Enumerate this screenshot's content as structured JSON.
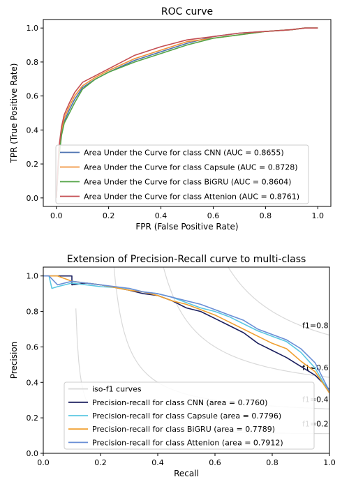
{
  "chart_data": [
    {
      "type": "line",
      "title": "ROC curve",
      "xlabel": "FPR (False Positive Rate)",
      "ylabel": "TPR (True Positive Rate)",
      "xlim": [
        -0.05,
        1.05
      ],
      "ylim": [
        -0.05,
        1.05
      ],
      "xticks": [
        0.0,
        0.2,
        0.4,
        0.6,
        0.8,
        1.0
      ],
      "yticks": [
        0.0,
        0.2,
        0.4,
        0.6,
        0.8,
        1.0
      ],
      "xtick_labels": [
        "0.0",
        "0.2",
        "0.4",
        "0.6",
        "0.8",
        "1.0"
      ],
      "ytick_labels": [
        "0.0",
        "0.2",
        "0.4",
        "0.6",
        "0.8",
        "1.0"
      ],
      "grid": false,
      "legend_position": "lower-right",
      "series": [
        {
          "name": "Area Under the Curve for class CNN (AUC = 0.8655)",
          "color": "#4c72b0",
          "x": [
            0.0,
            0.01,
            0.02,
            0.03,
            0.05,
            0.07,
            0.1,
            0.15,
            0.2,
            0.3,
            0.4,
            0.5,
            0.6,
            0.7,
            0.8,
            0.9,
            0.95,
            1.0
          ],
          "y": [
            0.0,
            0.25,
            0.38,
            0.45,
            0.52,
            0.58,
            0.65,
            0.7,
            0.74,
            0.81,
            0.86,
            0.91,
            0.95,
            0.97,
            0.98,
            0.99,
            1.0,
            1.0
          ]
        },
        {
          "name": "Area Under the Curve for class Capsule (AUC = 0.8728)",
          "color": "#f0923a",
          "x": [
            0.0,
            0.01,
            0.02,
            0.03,
            0.05,
            0.07,
            0.1,
            0.15,
            0.2,
            0.3,
            0.4,
            0.5,
            0.6,
            0.7,
            0.8,
            0.9,
            0.95,
            1.0
          ],
          "y": [
            0.0,
            0.28,
            0.4,
            0.47,
            0.54,
            0.6,
            0.66,
            0.71,
            0.75,
            0.82,
            0.87,
            0.92,
            0.94,
            0.96,
            0.98,
            0.99,
            1.0,
            1.0
          ]
        },
        {
          "name": "Area Under the Curve for class BiGRU (AUC = 0.8604)",
          "color": "#55a448",
          "x": [
            0.0,
            0.01,
            0.02,
            0.03,
            0.05,
            0.07,
            0.1,
            0.15,
            0.2,
            0.3,
            0.4,
            0.5,
            0.6,
            0.7,
            0.8,
            0.9,
            0.95,
            1.0
          ],
          "y": [
            0.0,
            0.24,
            0.37,
            0.44,
            0.5,
            0.56,
            0.64,
            0.7,
            0.74,
            0.8,
            0.85,
            0.9,
            0.94,
            0.96,
            0.98,
            0.99,
            1.0,
            1.0
          ]
        },
        {
          "name": "Area Under the Curve for class Attenion (AUC = 0.8761)",
          "color": "#c44e52",
          "x": [
            0.0,
            0.01,
            0.02,
            0.03,
            0.05,
            0.07,
            0.1,
            0.15,
            0.2,
            0.3,
            0.4,
            0.5,
            0.6,
            0.7,
            0.8,
            0.9,
            0.95,
            1.0
          ],
          "y": [
            0.0,
            0.3,
            0.42,
            0.49,
            0.56,
            0.62,
            0.68,
            0.72,
            0.76,
            0.84,
            0.89,
            0.93,
            0.95,
            0.97,
            0.98,
            0.99,
            1.0,
            1.0
          ]
        }
      ]
    },
    {
      "type": "line",
      "title": "Extension of Precision-Recall curve to multi-class",
      "xlabel": "Recall",
      "ylabel": "Precision",
      "xlim": [
        0.0,
        1.0
      ],
      "ylim": [
        0.0,
        1.05
      ],
      "xticks": [
        0.0,
        0.2,
        0.4,
        0.6,
        0.8,
        1.0
      ],
      "yticks": [
        0.0,
        0.2,
        0.4,
        0.6,
        0.8,
        1.0
      ],
      "xtick_labels": [
        "0.0",
        "0.2",
        "0.4",
        "0.6",
        "0.8",
        "1.0"
      ],
      "ytick_labels": [
        "0.0",
        "0.2",
        "0.4",
        "0.6",
        "0.8",
        "1.0"
      ],
      "grid": false,
      "legend_position": "lower-left",
      "iso_f1": {
        "label": "iso-f1 curves",
        "color": "#d9d9d9",
        "values": [
          0.2,
          0.4,
          0.6,
          0.8
        ],
        "labels": [
          "f1=0.2",
          "f1=0.4",
          "f1=0.6",
          "f1=0.8"
        ]
      },
      "series": [
        {
          "name": "Precision-recall for class CNN (area = 0.7760)",
          "color": "#1b1f5e",
          "x": [
            0.0,
            0.1,
            0.1,
            0.15,
            0.2,
            0.3,
            0.35,
            0.4,
            0.45,
            0.5,
            0.55,
            0.6,
            0.65,
            0.7,
            0.75,
            0.8,
            0.85,
            0.9,
            0.95,
            1.0
          ],
          "y": [
            1.0,
            1.0,
            0.95,
            0.96,
            0.95,
            0.92,
            0.9,
            0.89,
            0.86,
            0.82,
            0.8,
            0.76,
            0.72,
            0.68,
            0.62,
            0.58,
            0.54,
            0.49,
            0.44,
            0.36
          ]
        },
        {
          "name": "Precision-recall for class Capsule (area = 0.7796)",
          "color": "#5bc8e3",
          "x": [
            0.0,
            0.02,
            0.03,
            0.05,
            0.1,
            0.15,
            0.2,
            0.3,
            0.35,
            0.4,
            0.45,
            0.5,
            0.55,
            0.6,
            0.65,
            0.7,
            0.75,
            0.8,
            0.85,
            0.9,
            0.95,
            1.0
          ],
          "y": [
            1.0,
            1.0,
            0.93,
            0.94,
            0.96,
            0.95,
            0.94,
            0.93,
            0.91,
            0.9,
            0.88,
            0.85,
            0.82,
            0.8,
            0.77,
            0.73,
            0.69,
            0.66,
            0.63,
            0.57,
            0.48,
            0.34
          ]
        },
        {
          "name": "Precision-recall for class BiGRU (area = 0.7789)",
          "color": "#f0a030",
          "x": [
            0.0,
            0.05,
            0.1,
            0.15,
            0.2,
            0.3,
            0.35,
            0.4,
            0.45,
            0.5,
            0.55,
            0.6,
            0.65,
            0.7,
            0.75,
            0.8,
            0.85,
            0.9,
            0.95,
            1.0
          ],
          "y": [
            1.0,
            1.0,
            0.97,
            0.96,
            0.95,
            0.92,
            0.91,
            0.89,
            0.86,
            0.84,
            0.81,
            0.78,
            0.74,
            0.7,
            0.66,
            0.62,
            0.59,
            0.52,
            0.46,
            0.34
          ]
        },
        {
          "name": "Precision-recall for class Attenion (area = 0.7912)",
          "color": "#6a8fd6",
          "x": [
            0.0,
            0.02,
            0.05,
            0.1,
            0.15,
            0.2,
            0.3,
            0.35,
            0.4,
            0.45,
            0.5,
            0.55,
            0.6,
            0.65,
            0.7,
            0.75,
            0.8,
            0.85,
            0.9,
            0.95,
            1.0
          ],
          "y": [
            1.0,
            1.0,
            0.95,
            0.97,
            0.96,
            0.95,
            0.93,
            0.91,
            0.9,
            0.88,
            0.86,
            0.84,
            0.81,
            0.78,
            0.75,
            0.7,
            0.67,
            0.64,
            0.59,
            0.51,
            0.35
          ]
        }
      ]
    }
  ]
}
